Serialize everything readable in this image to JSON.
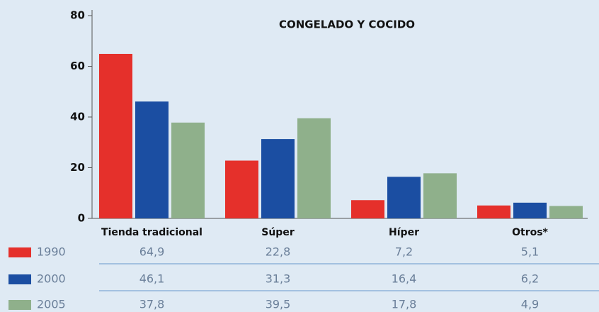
{
  "chart_data": {
    "type": "bar",
    "title": "CONGELADO Y COCIDO",
    "categories": [
      "Tienda tradicional",
      "Súper",
      "Híper",
      "Otros*"
    ],
    "series": [
      {
        "name": "1990",
        "color": "#e5302b",
        "values": [
          64.9,
          22.8,
          7.2,
          5.1
        ],
        "value_labels": [
          "64,9",
          "22,8",
          "7,2",
          "5,1"
        ]
      },
      {
        "name": "2000",
        "color": "#1b4ea2",
        "values": [
          46.1,
          31.3,
          16.4,
          6.2
        ],
        "value_labels": [
          "46,1",
          "31,3",
          "16,4",
          "6,2"
        ]
      },
      {
        "name": "2005",
        "color": "#8fb08b",
        "values": [
          37.8,
          39.5,
          17.8,
          4.9
        ],
        "value_labels": [
          "37,8",
          "39,5",
          "17,8",
          "4,9"
        ]
      }
    ],
    "ylim": [
      0,
      80
    ],
    "yticks": [
      0,
      20,
      40,
      60,
      80
    ]
  }
}
